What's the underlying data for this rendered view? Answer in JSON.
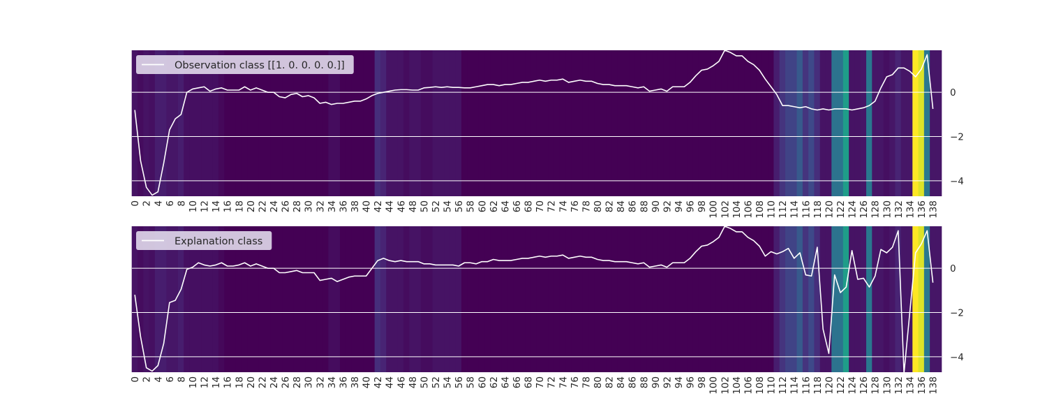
{
  "colors": {
    "line": "#ffffff",
    "grid": "#ffffff",
    "legend_bg": "#ddd5e8",
    "text": "#262626",
    "heatmap_colormap": "viridis"
  },
  "chart_data": [
    {
      "type": "line",
      "subtype": "line-over-heatmap",
      "legend": [
        "Observation class [[1. 0. 0. 0. 0.]]"
      ],
      "legend_position": "top-left",
      "ylim": [
        -4.7,
        1.9
      ],
      "yticks": [
        0,
        -2,
        -4
      ],
      "xlim": [
        0,
        140
      ],
      "xticks": [
        0,
        2,
        4,
        6,
        8,
        10,
        12,
        14,
        16,
        18,
        20,
        22,
        24,
        26,
        28,
        30,
        32,
        34,
        36,
        38,
        40,
        42,
        44,
        46,
        48,
        50,
        52,
        54,
        56,
        58,
        60,
        62,
        64,
        66,
        68,
        70,
        72,
        74,
        76,
        78,
        80,
        82,
        84,
        86,
        88,
        90,
        92,
        94,
        96,
        98,
        100,
        102,
        104,
        106,
        108,
        110,
        112,
        114,
        116,
        118,
        120,
        122,
        124,
        126,
        128,
        130,
        132,
        134,
        136,
        138
      ],
      "grid": true,
      "heatmap_values": [
        0.05,
        0.03,
        0.05,
        0.04,
        0.08,
        0.08,
        0.06,
        0.06,
        0.08,
        0.04,
        0.04,
        0.04,
        0.04,
        0.04,
        0.04,
        0.02,
        0.0,
        0.0,
        0.0,
        0.0,
        0.0,
        0.0,
        0.0,
        0.0,
        0.0,
        0.0,
        0.0,
        0.0,
        0.0,
        0.0,
        0.0,
        0.0,
        0.0,
        0.0,
        0.03,
        0.03,
        0.0,
        0.0,
        0.0,
        0.0,
        0.0,
        0.0,
        0.13,
        0.1,
        0.05,
        0.05,
        0.05,
        0.03,
        0.05,
        0.05,
        0.03,
        0.03,
        0.05,
        0.05,
        0.05,
        0.05,
        0.05,
        0.0,
        0.0,
        0.0,
        0.0,
        0.0,
        0.0,
        0.0,
        0.0,
        0.0,
        0.0,
        0.0,
        0.0,
        0.0,
        0.0,
        0.0,
        0.0,
        0.0,
        0.0,
        0.0,
        0.0,
        0.0,
        0.0,
        0.0,
        0.0,
        0.0,
        0.0,
        0.0,
        0.0,
        0.0,
        0.0,
        0.0,
        0.0,
        0.0,
        0.0,
        0.0,
        0.0,
        0.0,
        0.0,
        0.0,
        0.0,
        0.0,
        0.0,
        0.0,
        0.0,
        0.0,
        0.0,
        0.0,
        0.0,
        0.0,
        0.0,
        0.0,
        0.0,
        0.0,
        0.0,
        0.08,
        0.15,
        0.2,
        0.2,
        0.28,
        0.15,
        0.22,
        0.13,
        0.05,
        0.05,
        0.38,
        0.38,
        0.55,
        0.05,
        0.05,
        0.06,
        0.4,
        0.06,
        0.06,
        0.04,
        0.06,
        0.1,
        0.06,
        0.06,
        1.0,
        0.95,
        0.4,
        0.06,
        0.06
      ],
      "y": [
        -0.8,
        -3.1,
        -4.3,
        -4.65,
        -4.5,
        -3.2,
        -1.7,
        -1.2,
        -1.0,
        0.0,
        0.15,
        0.2,
        0.25,
        0.05,
        0.15,
        0.2,
        0.1,
        0.1,
        0.1,
        0.25,
        0.1,
        0.2,
        0.1,
        0.0,
        0.0,
        -0.2,
        -0.25,
        -0.1,
        -0.05,
        -0.2,
        -0.15,
        -0.25,
        -0.5,
        -0.45,
        -0.55,
        -0.5,
        -0.5,
        -0.45,
        -0.4,
        -0.4,
        -0.3,
        -0.15,
        -0.05,
        0.0,
        0.05,
        0.1,
        0.12,
        0.12,
        0.1,
        0.1,
        0.2,
        0.22,
        0.25,
        0.22,
        0.25,
        0.22,
        0.22,
        0.2,
        0.2,
        0.25,
        0.3,
        0.35,
        0.35,
        0.3,
        0.35,
        0.35,
        0.4,
        0.45,
        0.45,
        0.5,
        0.55,
        0.5,
        0.55,
        0.55,
        0.6,
        0.45,
        0.5,
        0.55,
        0.5,
        0.5,
        0.4,
        0.35,
        0.35,
        0.3,
        0.3,
        0.3,
        0.25,
        0.2,
        0.25,
        0.05,
        0.1,
        0.15,
        0.05,
        0.25,
        0.25,
        0.25,
        0.45,
        0.75,
        1.0,
        1.05,
        1.2,
        1.4,
        1.9,
        1.8,
        1.65,
        1.65,
        1.4,
        1.25,
        1.0,
        0.6,
        0.25,
        -0.1,
        -0.6,
        -0.6,
        -0.65,
        -0.7,
        -0.65,
        -0.75,
        -0.8,
        -0.75,
        -0.8,
        -0.75,
        -0.75,
        -0.75,
        -0.8,
        -0.75,
        -0.7,
        -0.6,
        -0.4,
        0.2,
        0.7,
        0.8,
        1.1,
        1.1,
        0.95,
        0.7,
        1.05,
        1.7,
        -0.75
      ]
    },
    {
      "type": "line",
      "subtype": "line-over-heatmap",
      "legend": [
        "Explanation class"
      ],
      "legend_position": "top-left",
      "ylim": [
        -4.7,
        1.9
      ],
      "yticks": [
        0,
        -2,
        -4
      ],
      "xlim": [
        0,
        140
      ],
      "xticks": [
        0,
        2,
        4,
        6,
        8,
        10,
        12,
        14,
        16,
        18,
        20,
        22,
        24,
        26,
        28,
        30,
        32,
        34,
        36,
        38,
        40,
        42,
        44,
        46,
        48,
        50,
        52,
        54,
        56,
        58,
        60,
        62,
        64,
        66,
        68,
        70,
        72,
        74,
        76,
        78,
        80,
        82,
        84,
        86,
        88,
        90,
        92,
        94,
        96,
        98,
        100,
        102,
        104,
        106,
        108,
        110,
        112,
        114,
        116,
        118,
        120,
        122,
        124,
        126,
        128,
        130,
        132,
        134,
        136,
        138
      ],
      "grid": true,
      "heatmap_values": [
        0.05,
        0.03,
        0.05,
        0.04,
        0.08,
        0.08,
        0.06,
        0.06,
        0.08,
        0.04,
        0.04,
        0.04,
        0.04,
        0.04,
        0.04,
        0.02,
        0.0,
        0.0,
        0.0,
        0.0,
        0.0,
        0.0,
        0.0,
        0.0,
        0.0,
        0.0,
        0.0,
        0.0,
        0.0,
        0.0,
        0.0,
        0.0,
        0.0,
        0.0,
        0.03,
        0.03,
        0.0,
        0.0,
        0.0,
        0.0,
        0.0,
        0.0,
        0.13,
        0.1,
        0.05,
        0.05,
        0.05,
        0.03,
        0.05,
        0.05,
        0.03,
        0.03,
        0.05,
        0.05,
        0.05,
        0.05,
        0.05,
        0.0,
        0.0,
        0.0,
        0.0,
        0.0,
        0.0,
        0.0,
        0.0,
        0.0,
        0.0,
        0.0,
        0.0,
        0.0,
        0.0,
        0.0,
        0.0,
        0.0,
        0.0,
        0.0,
        0.0,
        0.0,
        0.0,
        0.0,
        0.0,
        0.0,
        0.0,
        0.0,
        0.0,
        0.0,
        0.0,
        0.0,
        0.0,
        0.0,
        0.0,
        0.0,
        0.0,
        0.0,
        0.0,
        0.0,
        0.0,
        0.0,
        0.0,
        0.0,
        0.0,
        0.0,
        0.0,
        0.0,
        0.0,
        0.0,
        0.0,
        0.0,
        0.0,
        0.0,
        0.0,
        0.08,
        0.15,
        0.2,
        0.2,
        0.28,
        0.15,
        0.22,
        0.13,
        0.05,
        0.05,
        0.38,
        0.38,
        0.55,
        0.05,
        0.05,
        0.06,
        0.4,
        0.06,
        0.06,
        0.04,
        0.06,
        0.1,
        0.06,
        0.06,
        1.0,
        0.95,
        0.4,
        0.06,
        0.06
      ],
      "y": [
        -1.2,
        -3.1,
        -4.5,
        -4.65,
        -4.4,
        -3.4,
        -1.55,
        -1.45,
        -0.95,
        -0.05,
        0.05,
        0.25,
        0.15,
        0.1,
        0.15,
        0.25,
        0.1,
        0.1,
        0.15,
        0.25,
        0.1,
        0.2,
        0.1,
        0.0,
        0.0,
        -0.2,
        -0.2,
        -0.15,
        -0.1,
        -0.2,
        -0.2,
        -0.2,
        -0.55,
        -0.5,
        -0.45,
        -0.6,
        -0.5,
        -0.4,
        -0.35,
        -0.35,
        -0.35,
        0.0,
        0.35,
        0.45,
        0.35,
        0.3,
        0.35,
        0.3,
        0.3,
        0.3,
        0.2,
        0.2,
        0.15,
        0.15,
        0.15,
        0.15,
        0.1,
        0.25,
        0.25,
        0.2,
        0.3,
        0.3,
        0.4,
        0.35,
        0.35,
        0.35,
        0.4,
        0.45,
        0.45,
        0.5,
        0.55,
        0.5,
        0.55,
        0.55,
        0.6,
        0.45,
        0.5,
        0.55,
        0.5,
        0.5,
        0.4,
        0.35,
        0.35,
        0.3,
        0.3,
        0.3,
        0.25,
        0.2,
        0.25,
        0.05,
        0.1,
        0.15,
        0.05,
        0.25,
        0.25,
        0.25,
        0.45,
        0.75,
        1.0,
        1.05,
        1.2,
        1.4,
        1.9,
        1.8,
        1.65,
        1.65,
        1.4,
        1.25,
        1.0,
        0.55,
        0.75,
        0.65,
        0.75,
        0.9,
        0.45,
        0.7,
        -0.3,
        -0.35,
        0.95,
        -2.75,
        -3.85,
        -0.3,
        -1.1,
        -0.85,
        0.8,
        -0.5,
        -0.45,
        -0.85,
        -0.35,
        0.85,
        0.7,
        0.95,
        1.7,
        -4.75,
        -2.0,
        0.7,
        1.1,
        1.7,
        -0.65
      ]
    }
  ]
}
